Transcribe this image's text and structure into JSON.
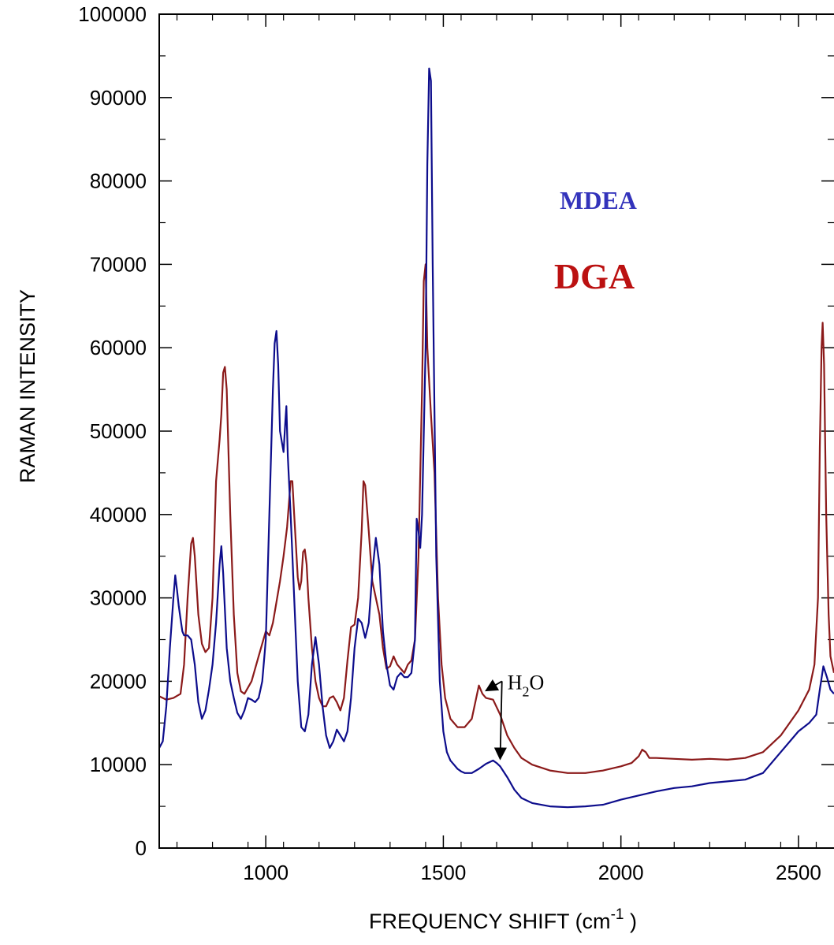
{
  "chart_data": {
    "type": "line",
    "xlabel": "FREQUENCY SHIFT (cm",
    "xlabel_sup": "-1",
    "xlabel_tail": " )",
    "ylabel": "RAMAN INTENSITY",
    "xlim": [
      700,
      2600
    ],
    "ylim": [
      0,
      100000
    ],
    "x_ticks": [
      1000,
      1500,
      2000,
      2500
    ],
    "x_tick_labels": [
      "1000",
      "1500",
      "2000",
      "2500"
    ],
    "y_ticks": [
      0,
      10000,
      20000,
      30000,
      40000,
      50000,
      60000,
      70000,
      80000,
      90000,
      100000
    ],
    "y_tick_labels": [
      "0",
      "10000",
      "20000",
      "30000",
      "40000",
      "50000",
      "60000",
      "70000",
      "80000",
      "90000",
      "100000"
    ],
    "grid": false,
    "legend_placement": "upper-middle",
    "series": [
      {
        "name": "MDEA",
        "color": "#0d0d8c",
        "label_color": "#3333bb",
        "points": [
          [
            700,
            12000
          ],
          [
            710,
            12800
          ],
          [
            720,
            17000
          ],
          [
            730,
            24000
          ],
          [
            740,
            30000
          ],
          [
            745,
            32700
          ],
          [
            750,
            31000
          ],
          [
            755,
            29000
          ],
          [
            760,
            27500
          ],
          [
            765,
            26000
          ],
          [
            770,
            25500
          ],
          [
            780,
            25500
          ],
          [
            790,
            25000
          ],
          [
            800,
            22000
          ],
          [
            810,
            17500
          ],
          [
            820,
            15500
          ],
          [
            830,
            16500
          ],
          [
            840,
            19000
          ],
          [
            850,
            22000
          ],
          [
            860,
            27000
          ],
          [
            870,
            34000
          ],
          [
            875,
            36200
          ],
          [
            880,
            33000
          ],
          [
            890,
            24000
          ],
          [
            900,
            20000
          ],
          [
            910,
            18000
          ],
          [
            920,
            16200
          ],
          [
            930,
            15500
          ],
          [
            940,
            16500
          ],
          [
            950,
            18000
          ],
          [
            960,
            17800
          ],
          [
            970,
            17500
          ],
          [
            980,
            18000
          ],
          [
            990,
            20000
          ],
          [
            1000,
            25000
          ],
          [
            1010,
            40000
          ],
          [
            1020,
            55000
          ],
          [
            1025,
            60500
          ],
          [
            1030,
            62000
          ],
          [
            1035,
            58000
          ],
          [
            1040,
            50000
          ],
          [
            1050,
            47500
          ],
          [
            1055,
            51000
          ],
          [
            1058,
            53000
          ],
          [
            1062,
            47000
          ],
          [
            1070,
            40000
          ],
          [
            1080,
            30000
          ],
          [
            1090,
            20000
          ],
          [
            1100,
            14500
          ],
          [
            1110,
            14000
          ],
          [
            1120,
            16000
          ],
          [
            1130,
            22000
          ],
          [
            1140,
            25300
          ],
          [
            1150,
            22000
          ],
          [
            1160,
            17000
          ],
          [
            1170,
            13500
          ],
          [
            1180,
            12000
          ],
          [
            1190,
            12800
          ],
          [
            1200,
            14200
          ],
          [
            1210,
            13500
          ],
          [
            1220,
            12800
          ],
          [
            1230,
            14000
          ],
          [
            1240,
            18000
          ],
          [
            1250,
            24000
          ],
          [
            1260,
            27500
          ],
          [
            1270,
            27000
          ],
          [
            1280,
            25200
          ],
          [
            1290,
            27000
          ],
          [
            1300,
            33000
          ],
          [
            1310,
            37200
          ],
          [
            1320,
            34000
          ],
          [
            1330,
            26000
          ],
          [
            1340,
            22000
          ],
          [
            1350,
            19500
          ],
          [
            1360,
            19000
          ],
          [
            1370,
            20500
          ],
          [
            1380,
            21000
          ],
          [
            1390,
            20500
          ],
          [
            1400,
            20500
          ],
          [
            1410,
            21000
          ],
          [
            1420,
            25000
          ],
          [
            1425,
            39500
          ],
          [
            1430,
            38000
          ],
          [
            1435,
            36000
          ],
          [
            1440,
            40000
          ],
          [
            1450,
            60000
          ],
          [
            1455,
            82000
          ],
          [
            1460,
            93500
          ],
          [
            1465,
            92000
          ],
          [
            1470,
            70000
          ],
          [
            1480,
            35000
          ],
          [
            1490,
            20000
          ],
          [
            1500,
            14000
          ],
          [
            1510,
            11500
          ],
          [
            1520,
            10500
          ],
          [
            1530,
            10000
          ],
          [
            1540,
            9500
          ],
          [
            1550,
            9200
          ],
          [
            1560,
            9000
          ],
          [
            1580,
            9000
          ],
          [
            1600,
            9500
          ],
          [
            1620,
            10100
          ],
          [
            1640,
            10500
          ],
          [
            1650,
            10200
          ],
          [
            1660,
            9800
          ],
          [
            1680,
            8500
          ],
          [
            1700,
            7000
          ],
          [
            1720,
            6000
          ],
          [
            1750,
            5400
          ],
          [
            1800,
            5000
          ],
          [
            1850,
            4900
          ],
          [
            1900,
            5000
          ],
          [
            1950,
            5200
          ],
          [
            2000,
            5800
          ],
          [
            2050,
            6300
          ],
          [
            2100,
            6800
          ],
          [
            2150,
            7200
          ],
          [
            2200,
            7400
          ],
          [
            2250,
            7800
          ],
          [
            2300,
            8000
          ],
          [
            2350,
            8200
          ],
          [
            2400,
            9000
          ],
          [
            2450,
            11500
          ],
          [
            2500,
            14000
          ],
          [
            2530,
            15000
          ],
          [
            2550,
            16000
          ],
          [
            2560,
            19000
          ],
          [
            2570,
            21800
          ],
          [
            2580,
            20500
          ],
          [
            2590,
            19000
          ],
          [
            2600,
            18500
          ]
        ]
      },
      {
        "name": "DGA",
        "color": "#8b1a1a",
        "label_color": "#bb1111",
        "points": [
          [
            700,
            18200
          ],
          [
            720,
            17800
          ],
          [
            740,
            18000
          ],
          [
            760,
            18500
          ],
          [
            770,
            22000
          ],
          [
            780,
            30000
          ],
          [
            790,
            36500
          ],
          [
            795,
            37200
          ],
          [
            800,
            35000
          ],
          [
            810,
            28000
          ],
          [
            820,
            24500
          ],
          [
            830,
            23500
          ],
          [
            840,
            24000
          ],
          [
            850,
            30000
          ],
          [
            860,
            44000
          ],
          [
            870,
            49000
          ],
          [
            875,
            52000
          ],
          [
            880,
            57000
          ],
          [
            885,
            57700
          ],
          [
            890,
            55000
          ],
          [
            900,
            40000
          ],
          [
            910,
            28000
          ],
          [
            920,
            21000
          ],
          [
            930,
            18800
          ],
          [
            940,
            18500
          ],
          [
            960,
            20000
          ],
          [
            980,
            23000
          ],
          [
            1000,
            26000
          ],
          [
            1010,
            25500
          ],
          [
            1020,
            27000
          ],
          [
            1030,
            29500
          ],
          [
            1040,
            32000
          ],
          [
            1050,
            35000
          ],
          [
            1060,
            38500
          ],
          [
            1070,
            44000
          ],
          [
            1075,
            44000
          ],
          [
            1080,
            40000
          ],
          [
            1090,
            32500
          ],
          [
            1095,
            31000
          ],
          [
            1100,
            32000
          ],
          [
            1105,
            35500
          ],
          [
            1110,
            35800
          ],
          [
            1115,
            34000
          ],
          [
            1120,
            30000
          ],
          [
            1130,
            24000
          ],
          [
            1140,
            20000
          ],
          [
            1150,
            18000
          ],
          [
            1160,
            17000
          ],
          [
            1170,
            17000
          ],
          [
            1180,
            18000
          ],
          [
            1190,
            18200
          ],
          [
            1200,
            17500
          ],
          [
            1210,
            16500
          ],
          [
            1220,
            18000
          ],
          [
            1230,
            22500
          ],
          [
            1240,
            26500
          ],
          [
            1250,
            26800
          ],
          [
            1260,
            30000
          ],
          [
            1270,
            38000
          ],
          [
            1275,
            44000
          ],
          [
            1280,
            43500
          ],
          [
            1290,
            38000
          ],
          [
            1300,
            32000
          ],
          [
            1310,
            30000
          ],
          [
            1320,
            28000
          ],
          [
            1330,
            24000
          ],
          [
            1340,
            21500
          ],
          [
            1350,
            21800
          ],
          [
            1360,
            23000
          ],
          [
            1370,
            22000
          ],
          [
            1380,
            21500
          ],
          [
            1390,
            21000
          ],
          [
            1400,
            22000
          ],
          [
            1410,
            22500
          ],
          [
            1420,
            25000
          ],
          [
            1430,
            35000
          ],
          [
            1440,
            55000
          ],
          [
            1445,
            68000
          ],
          [
            1450,
            70000
          ],
          [
            1455,
            60000
          ],
          [
            1465,
            52000
          ],
          [
            1475,
            45000
          ],
          [
            1485,
            30000
          ],
          [
            1495,
            22000
          ],
          [
            1505,
            18000
          ],
          [
            1520,
            15500
          ],
          [
            1540,
            14500
          ],
          [
            1560,
            14500
          ],
          [
            1580,
            15500
          ],
          [
            1590,
            17500
          ],
          [
            1600,
            19500
          ],
          [
            1610,
            18500
          ],
          [
            1620,
            18000
          ],
          [
            1640,
            17800
          ],
          [
            1660,
            16000
          ],
          [
            1680,
            13500
          ],
          [
            1700,
            12000
          ],
          [
            1720,
            10800
          ],
          [
            1750,
            10000
          ],
          [
            1800,
            9300
          ],
          [
            1850,
            9000
          ],
          [
            1900,
            9000
          ],
          [
            1950,
            9300
          ],
          [
            2000,
            9800
          ],
          [
            2030,
            10200
          ],
          [
            2050,
            11000
          ],
          [
            2060,
            11800
          ],
          [
            2070,
            11500
          ],
          [
            2080,
            10800
          ],
          [
            2100,
            10800
          ],
          [
            2150,
            10700
          ],
          [
            2200,
            10600
          ],
          [
            2250,
            10700
          ],
          [
            2300,
            10600
          ],
          [
            2350,
            10800
          ],
          [
            2400,
            11500
          ],
          [
            2450,
            13500
          ],
          [
            2500,
            16500
          ],
          [
            2530,
            19000
          ],
          [
            2545,
            22000
          ],
          [
            2555,
            30000
          ],
          [
            2560,
            48000
          ],
          [
            2565,
            60000
          ],
          [
            2568,
            63000
          ],
          [
            2572,
            58000
          ],
          [
            2578,
            40000
          ],
          [
            2585,
            28000
          ],
          [
            2590,
            23000
          ],
          [
            2600,
            21000
          ]
        ]
      }
    ],
    "annotations": [
      {
        "text": "H",
        "subscript": "2",
        "text_tail": "O",
        "targets": [
          [
            1620,
            18500
          ],
          [
            1660,
            10300
          ]
        ],
        "anchor": [
          1665,
          20000
        ]
      }
    ]
  }
}
